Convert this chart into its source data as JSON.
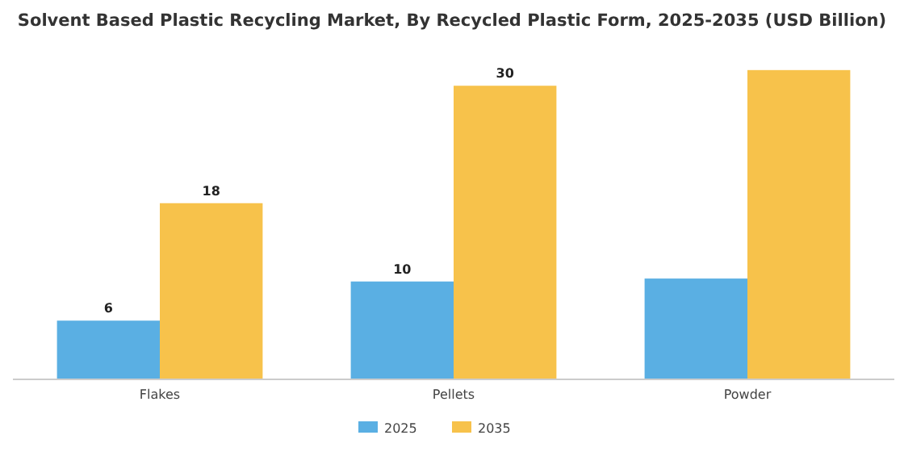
{
  "chart_data": {
    "type": "bar",
    "title": "Solvent Based Plastic Recycling Market, By Recycled Plastic Form, 2025-2035 (USD Billion)",
    "categories": [
      "Flakes",
      "Pellets",
      "Powder"
    ],
    "series": [
      {
        "name": "2025",
        "color": "#5aafe3",
        "values": [
          6,
          10,
          10.3
        ],
        "value_labels": [
          "6",
          "10",
          null
        ]
      },
      {
        "name": "2035",
        "color": "#f7c24b",
        "values": [
          18,
          30,
          31.6
        ],
        "value_labels": [
          "18",
          "30",
          null
        ]
      }
    ],
    "legend": "bottom",
    "grid": false
  }
}
